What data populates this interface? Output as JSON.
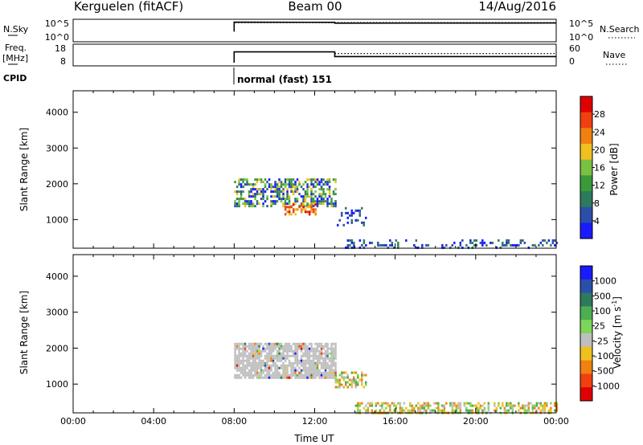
{
  "header": {
    "station": "Kerguelen (fitACF)",
    "beam": "Beam 00",
    "date": "14/Aug/2016"
  },
  "nsky_panel": {
    "label": "N.Sky",
    "right_label": "N.Search",
    "y_ticks_left": [
      "10^5",
      "10^0"
    ],
    "y_ticks_right": [
      "10^5",
      "10^0"
    ]
  },
  "freq_panel": {
    "label_line1": "Freq.",
    "label_line2": "[MHz]",
    "right_label": "Nave",
    "y_ticks_left": [
      "18",
      "8"
    ],
    "y_ticks_right": [
      "60",
      "0"
    ]
  },
  "cpid": {
    "label": "CPID",
    "program": "normal (fast) 151"
  },
  "colors": {
    "power_scale": [
      "#1a1aff",
      "#2b4fa8",
      "#2e7a5e",
      "#3a9a3a",
      "#7ac142",
      "#f0c020",
      "#f08010",
      "#f04010",
      "#e00000"
    ],
    "velocity_scale": [
      "#1a1aff",
      "#2b4fa8",
      "#2e7a5e",
      "#4caf50",
      "#7cd65a",
      "#bfbfbf",
      "#f0c020",
      "#f08010",
      "#f04010",
      "#e00000"
    ],
    "ground_scatter": "#bfbfbf"
  },
  "chart_data": [
    {
      "type": "line",
      "name": "nsky",
      "x_unit": "hours UT",
      "xlim": [
        0,
        24
      ],
      "series": [
        {
          "name": "N.Sky",
          "style": "solid",
          "points": [
            [
              8,
              2.5
            ],
            [
              8,
              4.8
            ],
            [
              13,
              4.75
            ],
            [
              13,
              4.55
            ],
            [
              24,
              4.6
            ]
          ]
        },
        {
          "name": "N.Search",
          "style": "dotted",
          "points": [
            [
              8,
              2.5
            ],
            [
              8,
              4.7
            ],
            [
              24,
              4.7
            ]
          ]
        }
      ],
      "ylim_left": [
        0,
        5.5
      ]
    },
    {
      "type": "line",
      "name": "frequency_nave",
      "x_unit": "hours UT",
      "xlim": [
        0,
        24
      ],
      "series": [
        {
          "name": "Freq.",
          "style": "solid",
          "points": [
            [
              8,
              8
            ],
            [
              8,
              15
            ],
            [
              13,
              15
            ],
            [
              13,
              12
            ],
            [
              24,
              12
            ]
          ]
        },
        {
          "name": "Nave",
          "style": "dotted",
          "points": [
            [
              13,
              14
            ],
            [
              24,
              14
            ]
          ]
        }
      ],
      "ylim_left": [
        6,
        20
      ]
    },
    {
      "type": "heatmap",
      "name": "power",
      "title": "",
      "xlabel": "",
      "ylabel": "Slant Range [km]",
      "xlim": [
        0,
        24
      ],
      "ylim": [
        200,
        4600
      ],
      "y_ticks": [
        1000,
        2000,
        3000,
        4000
      ],
      "colorbar_label": "Power [dB]",
      "colorbar_ticks": [
        "4",
        "8",
        "12",
        "16",
        "20",
        "24",
        "28"
      ],
      "colorbar_range": [
        0,
        32
      ],
      "regions": [
        {
          "t0": 8.0,
          "t1": 13.0,
          "r0": 1400,
          "r1": 2150,
          "level": "mixed"
        },
        {
          "t0": 10.5,
          "t1": 12.0,
          "r0": 1150,
          "r1": 1450,
          "level": "high"
        },
        {
          "t0": 13.0,
          "t1": 14.5,
          "r0": 850,
          "r1": 1350,
          "level": "low"
        },
        {
          "t0": 13.5,
          "t1": 24.0,
          "r0": 200,
          "r1": 450,
          "level": "low"
        }
      ]
    },
    {
      "type": "heatmap",
      "name": "velocity",
      "title": "",
      "xlabel": "Time UT",
      "ylabel": "Slant Range [km]",
      "xlim": [
        0,
        24
      ],
      "ylim": [
        200,
        4600
      ],
      "y_ticks": [
        1000,
        2000,
        3000,
        4000
      ],
      "x_ticks": [
        "00:00",
        "04:00",
        "08:00",
        "12:00",
        "16:00",
        "20:00",
        "00:00"
      ],
      "colorbar_label": "Velocity [m s",
      "colorbar_label_sup": "-1",
      "colorbar_label_end": "]",
      "colorbar_ticks": [
        "1000",
        "500",
        "100",
        "25",
        "-25",
        "-100",
        "-500",
        "-1000"
      ],
      "regions": [
        {
          "t0": 8.0,
          "t1": 13.0,
          "r0": 1150,
          "r1": 2150,
          "level": "ground"
        },
        {
          "t0": 13.0,
          "t1": 14.5,
          "r0": 900,
          "r1": 1350,
          "level": "mixed"
        },
        {
          "t0": 14.0,
          "t1": 24.0,
          "r0": 200,
          "r1": 500,
          "level": "mixed"
        }
      ]
    }
  ]
}
